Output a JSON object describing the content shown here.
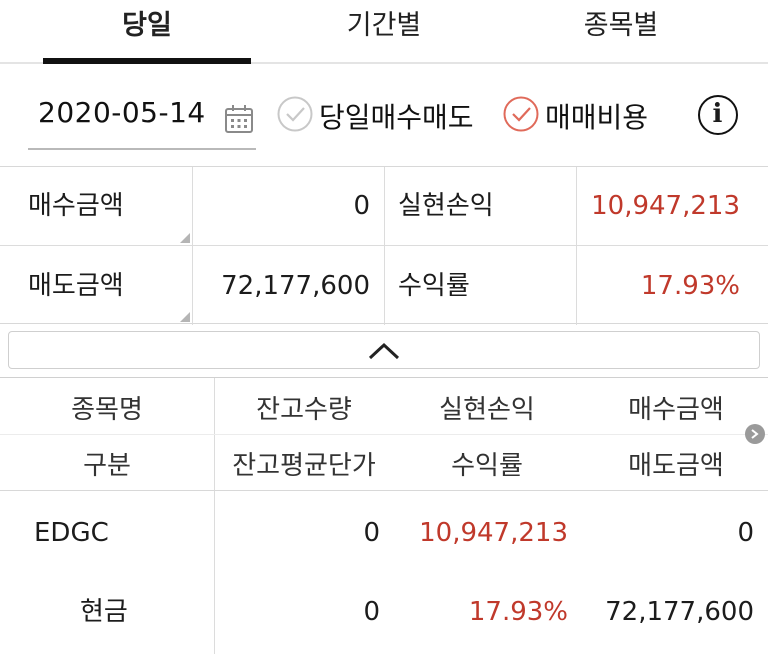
{
  "tabs": [
    {
      "label": "당일",
      "active": true
    },
    {
      "label": "기간별",
      "active": false
    },
    {
      "label": "종목별",
      "active": false
    }
  ],
  "filters": {
    "date": "2020-05-14",
    "same_day_trade_label": "당일매수매도",
    "same_day_trade_checked": false,
    "trade_cost_label": "매매비용",
    "trade_cost_checked": true,
    "info_label": "i"
  },
  "summary": {
    "buy_amount_label": "매수금액",
    "buy_amount_value": "0",
    "realized_pl_label": "실현손익",
    "realized_pl_value": "10,947,213",
    "sell_amount_label": "매도금액",
    "sell_amount_value": "72,177,600",
    "return_rate_label": "수익률",
    "return_rate_value": "17.93%"
  },
  "table": {
    "headers_row1": [
      "종목명",
      "잔고수량",
      "실현손익",
      "매수금액"
    ],
    "headers_row2": [
      "구분",
      "잔고평균단가",
      "수익률",
      "매도금액"
    ],
    "rows": [
      {
        "name": "EDGC",
        "balance_qty": "0",
        "realized_pl": "10,947,213",
        "buy_amount": "0",
        "category": "현금",
        "avg_price": "0",
        "return_rate": "17.93%",
        "sell_amount": "72,177,600"
      }
    ]
  },
  "colors": {
    "accent_red": "#c0392b",
    "check_off": "#c8c8c8",
    "check_on": "#e06a5a"
  }
}
